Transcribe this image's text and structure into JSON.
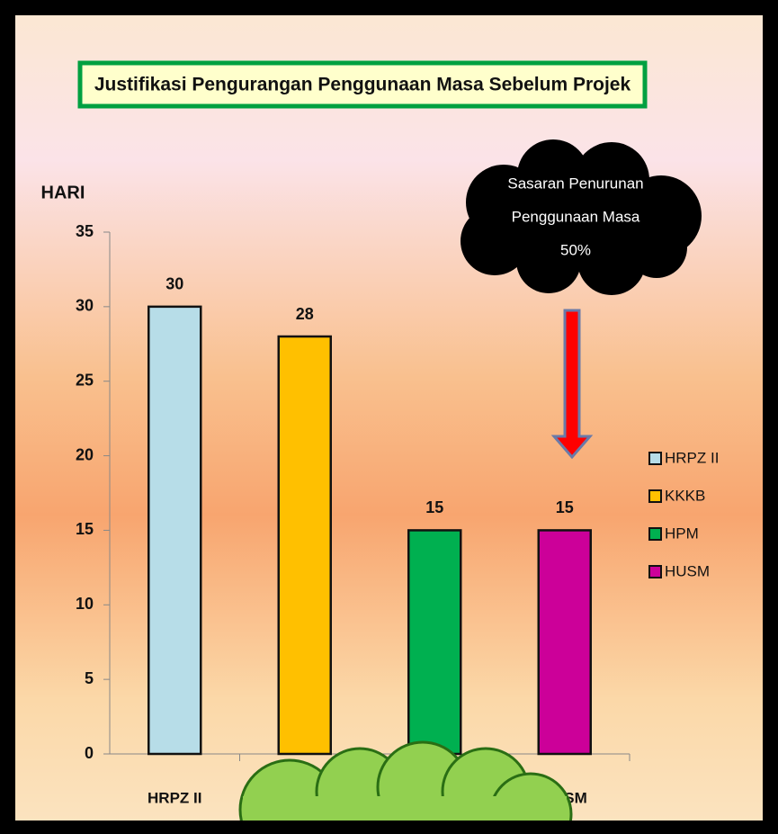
{
  "chart_data": {
    "type": "bar",
    "title": "Justifikasi Pengurangan Penggunaan Masa Sebelum Projek",
    "y_label": "HARI",
    "categories": [
      "HRPZ II",
      "KKKB",
      "HPM",
      "HUSM"
    ],
    "values": [
      30,
      28,
      15,
      15
    ],
    "colors": [
      "#b7dde8",
      "#ffc000",
      "#00b050",
      "#cc0099"
    ],
    "ylim": [
      0,
      35
    ],
    "yticks": [
      0,
      5,
      10,
      15,
      20,
      25,
      30,
      35
    ],
    "grid": false,
    "legend": "right",
    "annotation": [
      "Sasaran Penurunan",
      "Penggunaan Masa",
      "50%"
    ]
  }
}
